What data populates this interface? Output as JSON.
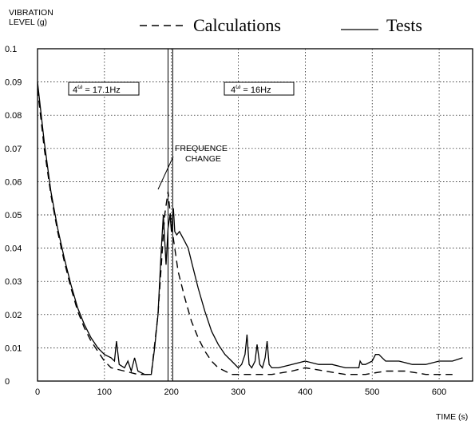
{
  "chart_data": {
    "type": "line",
    "ylabel": [
      "VIBRATION",
      "LEVEL (g)"
    ],
    "xlabel": "TIME (s)",
    "xlim": [
      0,
      650
    ],
    "ylim": [
      0,
      0.1
    ],
    "x_ticks": [
      0,
      100,
      200,
      300,
      400,
      500,
      600
    ],
    "y_ticks": [
      "0",
      "0.01",
      "0.02",
      "0.03",
      "0.04",
      "0.05",
      "0.06",
      "0.07",
      "0.08",
      "0.09",
      "0.1"
    ],
    "grid": true,
    "legend_position": "top",
    "series": [
      {
        "name": "Calculations",
        "style": "dashed",
        "x": [
          0,
          10,
          20,
          30,
          40,
          50,
          60,
          70,
          80,
          90,
          100,
          110,
          130,
          150,
          170,
          180,
          185,
          190,
          195,
          200,
          205,
          210,
          220,
          230,
          240,
          250,
          260,
          270,
          280,
          290,
          300,
          320,
          350,
          380,
          400,
          430,
          460,
          490,
          520,
          550,
          580,
          620
        ],
        "y": [
          0.088,
          0.07,
          0.056,
          0.045,
          0.036,
          0.028,
          0.021,
          0.016,
          0.012,
          0.009,
          0.006,
          0.004,
          0.003,
          0.002,
          0.002,
          0.02,
          0.035,
          0.05,
          0.057,
          0.047,
          0.04,
          0.033,
          0.025,
          0.018,
          0.013,
          0.009,
          0.006,
          0.004,
          0.003,
          0.002,
          0.002,
          0.002,
          0.002,
          0.003,
          0.004,
          0.003,
          0.002,
          0.002,
          0.003,
          0.003,
          0.002,
          0.002
        ]
      },
      {
        "name": "Tests",
        "style": "solid",
        "x": [
          0,
          10,
          20,
          30,
          40,
          50,
          60,
          70,
          80,
          90,
          100,
          110,
          115,
          118,
          122,
          130,
          135,
          140,
          145,
          150,
          160,
          170,
          175,
          180,
          185,
          188,
          192,
          195,
          198,
          200,
          203,
          205,
          208,
          212,
          220,
          225,
          230,
          240,
          250,
          260,
          270,
          280,
          290,
          300,
          305,
          310,
          313,
          316,
          320,
          325,
          328,
          332,
          336,
          340,
          343,
          346,
          350,
          360,
          380,
          400,
          420,
          440,
          460,
          480,
          482,
          485,
          490,
          500,
          505,
          510,
          515,
          520,
          540,
          560,
          580,
          600,
          620,
          635
        ],
        "y": [
          0.09,
          0.072,
          0.057,
          0.046,
          0.037,
          0.029,
          0.022,
          0.017,
          0.013,
          0.01,
          0.008,
          0.007,
          0.006,
          0.012,
          0.005,
          0.004,
          0.006,
          0.003,
          0.007,
          0.003,
          0.002,
          0.002,
          0.01,
          0.02,
          0.04,
          0.05,
          0.035,
          0.046,
          0.05,
          0.045,
          0.052,
          0.045,
          0.044,
          0.045,
          0.042,
          0.04,
          0.036,
          0.028,
          0.021,
          0.015,
          0.011,
          0.008,
          0.006,
          0.004,
          0.005,
          0.008,
          0.014,
          0.005,
          0.004,
          0.006,
          0.011,
          0.005,
          0.004,
          0.007,
          0.012,
          0.005,
          0.004,
          0.004,
          0.005,
          0.006,
          0.005,
          0.005,
          0.004,
          0.004,
          0.006,
          0.005,
          0.005,
          0.006,
          0.008,
          0.008,
          0.007,
          0.006,
          0.006,
          0.005,
          0.005,
          0.006,
          0.006,
          0.007
        ]
      }
    ],
    "vertical_lines": [
      {
        "x": 195
      },
      {
        "x": 202
      }
    ],
    "annotations": [
      {
        "text": "4ω = 17.1Hz",
        "prefix": "4",
        "sup": "ω",
        "suffix": " = 17.1Hz"
      },
      {
        "text": "4ω = 16Hz",
        "prefix": "4",
        "sup": "ω",
        "suffix": " = 16Hz"
      },
      {
        "text": "FREQUENCE CHANGE",
        "lines": [
          "FREQUENCE",
          "CHANGE"
        ]
      }
    ]
  }
}
